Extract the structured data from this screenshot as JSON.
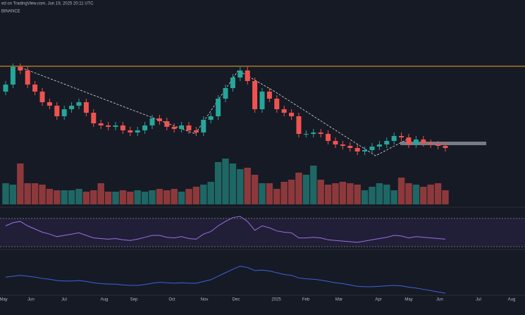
{
  "header": {
    "published": "ed on TradingView.com, Jun 19, 2025 20:11 UTC",
    "exchange": "BINANCE"
  },
  "chart_data": {
    "type": "candlestick",
    "up_color": "#26a69a",
    "down_color": "#ef5350",
    "open": [
      95,
      105,
      130,
      125,
      105,
      95,
      80,
      75,
      60,
      70,
      75,
      80,
      65,
      50,
      47,
      45,
      47,
      40,
      37,
      40,
      47,
      57,
      53,
      45,
      42,
      47,
      40,
      37,
      55,
      60,
      85,
      100,
      115,
      125,
      110,
      70,
      95,
      85,
      70,
      65,
      60,
      35,
      35,
      37,
      35,
      25,
      20,
      18,
      15,
      10,
      12,
      17,
      20,
      25,
      32,
      30,
      20,
      27,
      22,
      20,
      18
    ],
    "high": [
      110,
      135,
      135,
      130,
      110,
      100,
      85,
      80,
      75,
      80,
      85,
      85,
      70,
      55,
      52,
      52,
      52,
      45,
      45,
      52,
      62,
      62,
      58,
      50,
      52,
      52,
      45,
      60,
      65,
      90,
      105,
      120,
      130,
      130,
      115,
      100,
      100,
      90,
      75,
      70,
      65,
      40,
      42,
      42,
      40,
      30,
      25,
      23,
      20,
      17,
      22,
      25,
      30,
      37,
      37,
      35,
      32,
      32,
      27,
      25,
      23
    ],
    "low": [
      90,
      100,
      120,
      100,
      90,
      75,
      70,
      55,
      55,
      65,
      70,
      60,
      45,
      42,
      40,
      40,
      35,
      32,
      32,
      35,
      42,
      48,
      40,
      37,
      37,
      35,
      32,
      32,
      50,
      55,
      80,
      95,
      110,
      105,
      65,
      65,
      80,
      65,
      60,
      55,
      30,
      30,
      30,
      30,
      20,
      15,
      13,
      10,
      5,
      5,
      7,
      12,
      15,
      20,
      25,
      15,
      15,
      17,
      15,
      13,
      10
    ],
    "close": [
      105,
      130,
      125,
      105,
      95,
      80,
      75,
      60,
      70,
      75,
      80,
      65,
      50,
      47,
      45,
      47,
      40,
      37,
      40,
      47,
      57,
      53,
      45,
      42,
      47,
      40,
      37,
      55,
      60,
      85,
      100,
      115,
      125,
      110,
      70,
      95,
      85,
      70,
      65,
      60,
      35,
      35,
      37,
      35,
      25,
      20,
      18,
      15,
      10,
      12,
      17,
      20,
      25,
      32,
      30,
      20,
      27,
      22,
      20,
      18,
      15
    ],
    "ylim": [
      0,
      145
    ],
    "volume": [
      30,
      28,
      58,
      30,
      30,
      28,
      22,
      20,
      20,
      20,
      22,
      18,
      20,
      30,
      18,
      18,
      20,
      18,
      20,
      18,
      20,
      22,
      20,
      22,
      18,
      22,
      25,
      28,
      32,
      60,
      65,
      58,
      50,
      52,
      42,
      30,
      30,
      22,
      32,
      35,
      45,
      42,
      55,
      35,
      28,
      30,
      32,
      30,
      28,
      20,
      25,
      30,
      28,
      20,
      38,
      30,
      28,
      25,
      28,
      30,
      20
    ],
    "volume_ylim": [
      0,
      70
    ],
    "rsi": [
      55,
      60,
      62,
      55,
      50,
      45,
      42,
      38,
      40,
      42,
      44,
      40,
      36,
      35,
      34,
      35,
      33,
      32,
      34,
      37,
      40,
      40,
      37,
      36,
      38,
      35,
      34,
      42,
      46,
      55,
      62,
      68,
      70,
      62,
      48,
      55,
      52,
      47,
      45,
      44,
      36,
      36,
      37,
      36,
      33,
      32,
      31,
      30,
      29,
      31,
      33,
      35,
      37,
      40,
      39,
      36,
      38,
      37,
      36,
      35,
      34
    ],
    "rsi_ylim": [
      20,
      80
    ],
    "oscillator": [
      40,
      42,
      44,
      42,
      40,
      37,
      35,
      32,
      31,
      31,
      32,
      30,
      27,
      25,
      24,
      24,
      22,
      21,
      21,
      23,
      26,
      28,
      27,
      26,
      27,
      26,
      26,
      30,
      34,
      42,
      50,
      58,
      65,
      62,
      55,
      56,
      54,
      50,
      46,
      44,
      38,
      36,
      35,
      33,
      30,
      27,
      25,
      22,
      19,
      18,
      18,
      19,
      20,
      21,
      20,
      17,
      15,
      12,
      9,
      6,
      3
    ],
    "oscillator_ylim": [
      0,
      100
    ],
    "x_labels": [
      "May",
      "Jun",
      "Jul",
      "Aug",
      "Sep",
      "Oct",
      "Nov",
      "Dec",
      "2025",
      "Feb",
      "Mar",
      "Apr",
      "May",
      "Jun",
      "Jul",
      "Aug"
    ]
  }
}
